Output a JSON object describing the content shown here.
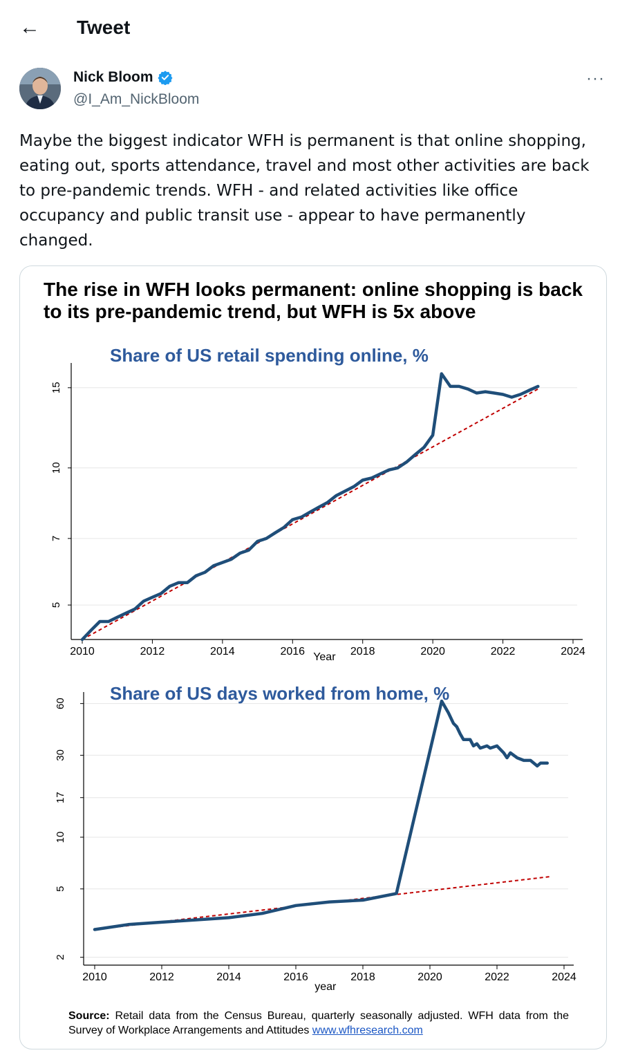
{
  "header": {
    "back_icon": "arrow-left-icon",
    "title": "Tweet"
  },
  "tweet": {
    "author_name": "Nick Bloom",
    "handle": "@I_Am_NickBloom",
    "verified_icon": "verified-badge-icon",
    "more_icon": "more-options-icon",
    "more_label": "···",
    "text": "Maybe the biggest indicator WFH is permanent is that online shopping,\neating out, sports attendance, travel and most other activities are back\nto pre-pandemic trends. WFH - and related activities like office\noccupancy and public transit use - appear to have permanently\nchanged."
  },
  "card": {
    "title": "The rise in WFH looks permanent: online shopping is back to its pre-pandemic trend, but WFH is 5x above",
    "source_label": "Source:",
    "source_text": " Retail data from the Census Bureau, quarterly seasonally adjusted. WFH data from the Survey of Workplace Arrangements and Attitudes ",
    "source_link": "www.wfhresearch.com"
  },
  "colors": {
    "series": "#1f4e79",
    "trend": "#c00000",
    "chart_title": "#2e5a9c",
    "link": "#1a56c4"
  },
  "chart_data": [
    {
      "type": "line",
      "title": "Share of US retail spending online, %",
      "xlabel": "Year",
      "ylabel": "",
      "yscale": "log",
      "xlim": [
        2010,
        2024
      ],
      "ylim": [
        4.2,
        17
      ],
      "xticks": [
        2010,
        2012,
        2014,
        2016,
        2018,
        2020,
        2022,
        2024
      ],
      "yticks": [
        5,
        7,
        10,
        15
      ],
      "grid": true,
      "series": [
        {
          "x": [
            2010.0,
            2010.25,
            2010.5,
            2010.75,
            2011.0,
            2011.25,
            2011.5,
            2011.75,
            2012.0,
            2012.25,
            2012.5,
            2012.75,
            2013.0,
            2013.25,
            2013.5,
            2013.75,
            2014.0,
            2014.25,
            2014.5,
            2014.75,
            2015.0,
            2015.25,
            2015.5,
            2015.75,
            2016.0,
            2016.25,
            2016.5,
            2016.75,
            2017.0,
            2017.25,
            2017.5,
            2017.75,
            2018.0,
            2018.25,
            2018.5,
            2018.75,
            2019.0,
            2019.25,
            2019.5,
            2019.75,
            2020.0,
            2020.25,
            2020.5,
            2020.75,
            2021.0,
            2021.25,
            2021.5,
            2021.75,
            2022.0,
            2022.25,
            2022.5,
            2022.75,
            2023.0
          ],
          "values": [
            4.2,
            4.4,
            4.6,
            4.6,
            4.7,
            4.8,
            4.9,
            5.1,
            5.2,
            5.3,
            5.5,
            5.6,
            5.6,
            5.8,
            5.9,
            6.1,
            6.2,
            6.3,
            6.5,
            6.6,
            6.9,
            7.0,
            7.2,
            7.4,
            7.7,
            7.8,
            8.0,
            8.2,
            8.4,
            8.7,
            8.9,
            9.1,
            9.4,
            9.5,
            9.7,
            9.9,
            10.0,
            10.3,
            10.7,
            11.1,
            11.8,
            16.1,
            15.1,
            15.1,
            14.9,
            14.6,
            14.7,
            14.6,
            14.5,
            14.3,
            14.5,
            14.8,
            15.1
          ]
        }
      ],
      "trend": {
        "x": [
          2010.0,
          2023.0
        ],
        "values": [
          4.2,
          14.9
        ]
      }
    },
    {
      "type": "line",
      "title": "Share of US days worked from home, %",
      "xlabel": "year",
      "ylabel": "",
      "yscale": "log",
      "xlim": [
        2010,
        2024
      ],
      "ylim": [
        1.8,
        70
      ],
      "xticks": [
        2010,
        2012,
        2014,
        2016,
        2018,
        2020,
        2022,
        2024
      ],
      "yticks": [
        2,
        5,
        10,
        17,
        30,
        60
      ],
      "grid": true,
      "series": [
        {
          "x": [
            2010,
            2011,
            2012,
            2013,
            2014,
            2015,
            2016,
            2017,
            2018,
            2019,
            2020.35,
            2020.55,
            2020.7,
            2020.8,
            2020.9,
            2021.0,
            2021.2,
            2021.3,
            2021.4,
            2021.5,
            2021.7,
            2021.8,
            2022.0,
            2022.2,
            2022.3,
            2022.4,
            2022.6,
            2022.8,
            2023.0,
            2023.2,
            2023.3,
            2023.5
          ],
          "values": [
            2.9,
            3.1,
            3.2,
            3.3,
            3.4,
            3.6,
            4.0,
            4.2,
            4.3,
            4.7,
            62,
            53,
            46,
            44,
            40,
            37,
            37,
            34,
            35,
            33,
            34,
            33,
            34,
            31,
            29,
            31,
            29,
            28,
            28,
            26,
            27,
            27
          ]
        }
      ],
      "trend": {
        "x": [
          2010.0,
          2023.6
        ],
        "values": [
          2.9,
          5.9
        ]
      }
    }
  ]
}
